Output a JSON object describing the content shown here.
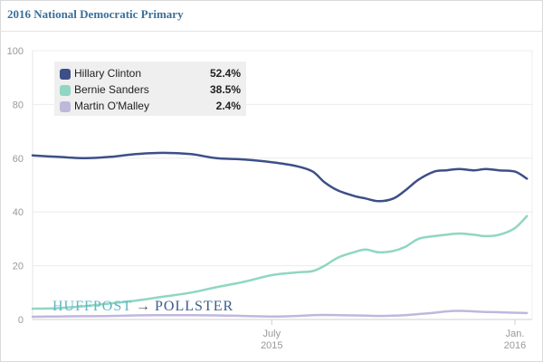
{
  "header": {
    "title": "2016 National Democratic Primary"
  },
  "legend": {
    "items": [
      {
        "name": "Hillary Clinton",
        "value": "52.4%",
        "color": "#3d4f87"
      },
      {
        "name": "Bernie Sanders",
        "value": "38.5%",
        "color": "#8fd6c3"
      },
      {
        "name": "Martin O'Malley",
        "value": "2.4%",
        "color": "#c0b7dd"
      }
    ]
  },
  "watermark": {
    "left": "HUFFPOST",
    "arrow": "→",
    "right": "POLLSTER"
  },
  "chart_data": {
    "type": "line",
    "title": "2016 National Democratic Primary",
    "xlabel": "",
    "ylabel": "",
    "ylim": [
      0,
      100
    ],
    "yticks": [
      0,
      20,
      40,
      60,
      80,
      100
    ],
    "grid": true,
    "legend_position": "top-left",
    "x_ticks": [
      {
        "label": [
          "July",
          "2015"
        ],
        "x": "2015-07-01"
      },
      {
        "label": [
          "Jan.",
          "2016"
        ],
        "x": "2016-01-01"
      }
    ],
    "x": [
      "2015-01-01",
      "2015-01-20",
      "2015-02-10",
      "2015-03-01",
      "2015-03-20",
      "2015-04-10",
      "2015-05-01",
      "2015-05-20",
      "2015-06-10",
      "2015-07-01",
      "2015-07-20",
      "2015-08-01",
      "2015-08-10",
      "2015-08-20",
      "2015-09-01",
      "2015-09-10",
      "2015-09-20",
      "2015-10-01",
      "2015-10-10",
      "2015-10-20",
      "2015-11-01",
      "2015-11-10",
      "2015-11-20",
      "2015-12-01",
      "2015-12-10",
      "2015-12-20",
      "2016-01-01",
      "2016-01-10"
    ],
    "series": [
      {
        "name": "Hillary Clinton",
        "color": "#3d4f87",
        "values": [
          61,
          60.5,
          60,
          60.5,
          61.5,
          62,
          61.5,
          60,
          59.5,
          58.5,
          57,
          55,
          51,
          48,
          46,
          45,
          44,
          45,
          48,
          52,
          55,
          55.5,
          56,
          55.5,
          56,
          55.5,
          55,
          52.4
        ]
      },
      {
        "name": "Bernie Sanders",
        "color": "#8fd6c3",
        "values": [
          4,
          4.2,
          5,
          6,
          7,
          8.5,
          10,
          12,
          14,
          16.5,
          17.5,
          18,
          20,
          23,
          25,
          26,
          25,
          25.5,
          27,
          30,
          31,
          31.5,
          32,
          31.5,
          31,
          31.5,
          34,
          38.5
        ]
      },
      {
        "name": "Martin O'Malley",
        "color": "#c0b7dd",
        "values": [
          1,
          1.1,
          1.2,
          1.3,
          1.5,
          1.6,
          1.6,
          1.5,
          1.3,
          1.1,
          1.3,
          1.6,
          1.7,
          1.6,
          1.5,
          1.4,
          1.3,
          1.4,
          1.6,
          2,
          2.5,
          3,
          3.2,
          3,
          2.8,
          2.7,
          2.5,
          2.4
        ]
      }
    ]
  }
}
